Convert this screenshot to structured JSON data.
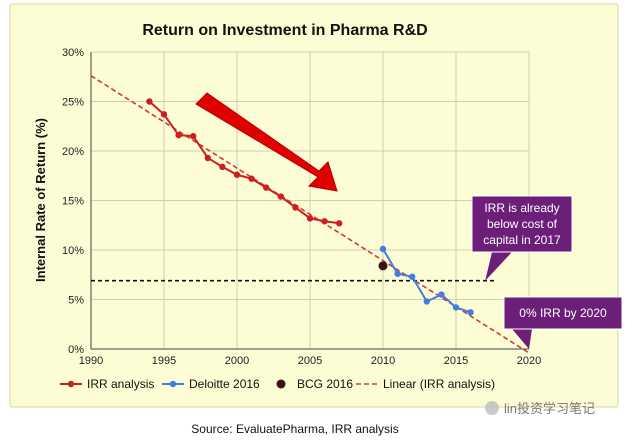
{
  "colors": {
    "background": "#ffffff",
    "panel": "#fdfdd5",
    "irr": "#cc1f1f",
    "deloitte": "#3f7fe0",
    "bcg": "#3a1414",
    "trend": "#d13a3a",
    "annotation": "#6b1f78",
    "arrow": "#e00000"
  },
  "chart_data": {
    "type": "line",
    "title": "Return on Investment in Pharma R&D",
    "ylabel": "Internal Rate of Return (%)",
    "xlabel": "",
    "xlim": [
      1990,
      2020
    ],
    "ylim": [
      0,
      30
    ],
    "x_ticks": [
      1990,
      1995,
      2000,
      2005,
      2010,
      2015,
      2020
    ],
    "y_ticks": [
      0,
      5,
      10,
      15,
      20,
      25,
      30
    ],
    "y_tick_labels": [
      "0%",
      "5%",
      "10%",
      "15%",
      "20%",
      "25%",
      "30%"
    ],
    "grid": true,
    "legend_position": "bottom",
    "series": [
      {
        "name": "IRR analysis",
        "kind": "line-marker",
        "x": [
          1994,
          1995,
          1996,
          1997,
          1998,
          1999,
          2000,
          2001,
          2002,
          2003,
          2004,
          2005,
          2006,
          2007
        ],
        "y": [
          25.0,
          23.7,
          21.6,
          21.5,
          19.3,
          18.4,
          17.6,
          17.2,
          16.3,
          15.4,
          14.3,
          13.2,
          12.9,
          12.7
        ]
      },
      {
        "name": "Deloitte 2016",
        "kind": "line-marker",
        "x": [
          2010,
          2011,
          2012,
          2013,
          2014,
          2015,
          2016
        ],
        "y": [
          10.1,
          7.6,
          7.3,
          4.8,
          5.5,
          4.2,
          3.7
        ]
      },
      {
        "name": "BCG 2016",
        "kind": "point",
        "x": [
          2010
        ],
        "y": [
          8.4
        ]
      },
      {
        "name": "Linear (IRR analysis)",
        "kind": "trend",
        "x": [
          1990,
          2020
        ],
        "y": [
          27.6,
          -0.4
        ]
      }
    ],
    "reference_lines": [
      {
        "y": 6.9,
        "style": "dashed"
      }
    ],
    "annotations": [
      {
        "text_lines": [
          "IRR is already",
          "below cost of",
          "capital in 2017"
        ],
        "points_to": [
          2017,
          6.9
        ]
      },
      {
        "text_lines": [
          "0% IRR by 2020"
        ],
        "points_to": [
          2020,
          0
        ]
      }
    ],
    "source": "Source: EvaluatePharma,  IRR analysis"
  },
  "watermark": "lin投资学习笔记"
}
